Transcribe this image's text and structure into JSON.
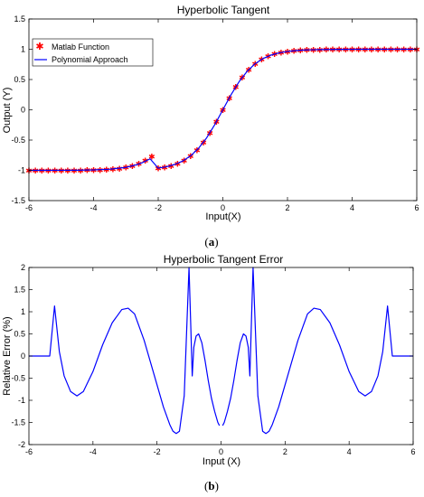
{
  "chart_data": [
    {
      "type": "line",
      "title": "Hyperbolic Tangent",
      "xlabel": "Input(X)",
      "ylabel": "Output (Y)",
      "caption_prefix": "(",
      "caption_letter": "a",
      "caption_suffix": ")",
      "xlim": [
        -6,
        6
      ],
      "ylim": [
        -1.5,
        1.5
      ],
      "xticks": [
        "-6",
        "-4",
        "-2",
        "0",
        "2",
        "4",
        "6"
      ],
      "yticks": [
        "-1.5",
        "-1",
        "-0.5",
        "0",
        "0.5",
        "1",
        "1.5"
      ],
      "legend": "top-left",
      "grid": false,
      "series": [
        {
          "name": "Matlab Function",
          "style": "markers",
          "color": "#ff0000",
          "x": [
            -6.0,
            -5.8,
            -5.6,
            -5.4,
            -5.2,
            -5.0,
            -4.8,
            -4.6,
            -4.4,
            -4.2,
            -4.0,
            -3.8,
            -3.6,
            -3.4,
            -3.2,
            -3.0,
            -2.8,
            -2.6,
            -2.4,
            -2.2,
            -2.0,
            -1.8,
            -1.6,
            -1.4,
            -1.2,
            -1.0,
            -0.8,
            -0.6,
            -0.4,
            -0.2,
            0.0,
            0.2,
            0.4,
            0.6,
            0.8,
            1.0,
            1.2,
            1.4,
            1.6,
            1.8,
            2.0,
            2.2,
            2.4,
            2.6,
            2.8,
            3.0,
            3.2,
            3.4,
            3.6,
            3.8,
            4.0,
            4.2,
            4.4,
            4.6,
            4.8,
            5.0,
            5.2,
            5.4,
            5.6,
            5.8,
            6.0
          ],
          "y": [
            -1.0,
            -1.0,
            -1.0,
            -1.0,
            -0.999,
            -0.999,
            -0.999,
            -0.998,
            -0.997,
            -0.996,
            -0.993,
            -0.99,
            -0.985,
            -0.978,
            -0.967,
            -0.951,
            -0.926,
            -0.89,
            -0.838,
            -0.766,
            -0.964,
            -0.947,
            -0.922,
            -0.885,
            -0.834,
            -0.762,
            -0.664,
            -0.537,
            -0.38,
            -0.197,
            0.0,
            0.197,
            0.38,
            0.537,
            0.664,
            0.762,
            0.834,
            0.885,
            0.922,
            0.947,
            0.964,
            0.976,
            0.984,
            0.989,
            0.993,
            0.995,
            0.997,
            0.998,
            0.998,
            0.999,
            0.999,
            1.0,
            1.0,
            1.0,
            1.0,
            1.0,
            1.0,
            1.0,
            1.0,
            1.0,
            1.0
          ]
        },
        {
          "name": "Polynomial Approach",
          "style": "line",
          "color": "#0000ff",
          "x": [
            -6.0,
            -5.5,
            -5.0,
            -4.5,
            -4.0,
            -3.5,
            -3.0,
            -2.75,
            -2.5,
            -2.25,
            -2.0,
            -1.75,
            -1.5,
            -1.25,
            -1.0,
            -0.75,
            -0.5,
            -0.25,
            0.0,
            0.25,
            0.5,
            0.75,
            1.0,
            1.25,
            1.5,
            1.75,
            2.0,
            2.25,
            2.5,
            2.75,
            3.0,
            3.5,
            4.0,
            4.5,
            5.0,
            5.5,
            6.0
          ],
          "y": [
            -1.0,
            -1.0,
            -0.999,
            -0.998,
            -0.993,
            -0.982,
            -0.951,
            -0.92,
            -0.876,
            -0.81,
            -0.964,
            -0.941,
            -0.905,
            -0.848,
            -0.762,
            -0.635,
            -0.462,
            -0.245,
            0.0,
            0.245,
            0.462,
            0.635,
            0.762,
            0.848,
            0.905,
            0.941,
            0.964,
            0.978,
            0.987,
            0.992,
            0.995,
            0.998,
            0.999,
            1.0,
            1.0,
            1.0,
            1.0
          ]
        }
      ]
    },
    {
      "type": "line",
      "title": "Hyperbolic Tangent Error",
      "xlabel": "Input (X)",
      "ylabel": "Relative Error (%)",
      "caption_prefix": "(",
      "caption_letter": "b",
      "caption_suffix": ")",
      "xlim": [
        -6,
        6
      ],
      "ylim": [
        -2,
        2
      ],
      "xticks": [
        "-6",
        "-4",
        "-2",
        "0",
        "2",
        "4",
        "6"
      ],
      "yticks": [
        "-2",
        "-1.5",
        "-1",
        "-0.5",
        "0",
        "0.5",
        "1",
        "1.5",
        "2"
      ],
      "grid": false,
      "series": [
        {
          "color": "#0000ff",
          "x": [
            -6.0,
            -5.35,
            -5.2,
            -5.05,
            -4.9,
            -4.7,
            -4.5,
            -4.3,
            -4.0,
            -3.7,
            -3.4,
            -3.1,
            -2.9,
            -2.7,
            -2.4,
            -2.1,
            -1.8,
            -1.6,
            -1.5,
            -1.4,
            -1.3,
            -1.15,
            -1.0,
            -0.95,
            -0.9,
            -0.85,
            -0.78,
            -0.7,
            -0.6,
            -0.5,
            -0.4,
            -0.3,
            -0.2,
            -0.1,
            -0.05
          ],
          "y": [
            0.0,
            0.0,
            1.13,
            0.1,
            -0.45,
            -0.8,
            -0.9,
            -0.8,
            -0.35,
            0.25,
            0.75,
            1.05,
            1.08,
            0.95,
            0.35,
            -0.4,
            -1.15,
            -1.55,
            -1.7,
            -1.75,
            -1.7,
            -0.9,
            2.0,
            0.8,
            -0.45,
            0.2,
            0.45,
            0.5,
            0.3,
            -0.1,
            -0.55,
            -0.95,
            -1.25,
            -1.5,
            -1.57
          ]
        },
        {
          "color": "#0000ff",
          "x": [
            0.05,
            0.1,
            0.2,
            0.3,
            0.4,
            0.5,
            0.6,
            0.7,
            0.78,
            0.85,
            0.9,
            0.95,
            1.0,
            1.15,
            1.3,
            1.4,
            1.5,
            1.6,
            1.8,
            2.1,
            2.4,
            2.7,
            2.9,
            3.1,
            3.4,
            3.7,
            4.0,
            4.3,
            4.5,
            4.7,
            4.9,
            5.05,
            5.2,
            5.35,
            6.0
          ],
          "y": [
            -1.57,
            -1.5,
            -1.25,
            -0.95,
            -0.55,
            -0.1,
            0.3,
            0.5,
            0.45,
            0.2,
            -0.45,
            0.8,
            2.0,
            -0.9,
            -1.7,
            -1.75,
            -1.7,
            -1.55,
            -1.15,
            -0.4,
            0.35,
            0.95,
            1.08,
            1.05,
            0.75,
            0.25,
            -0.35,
            -0.8,
            -0.9,
            -0.8,
            -0.45,
            0.1,
            1.13,
            0.0,
            0.0
          ]
        }
      ]
    }
  ]
}
